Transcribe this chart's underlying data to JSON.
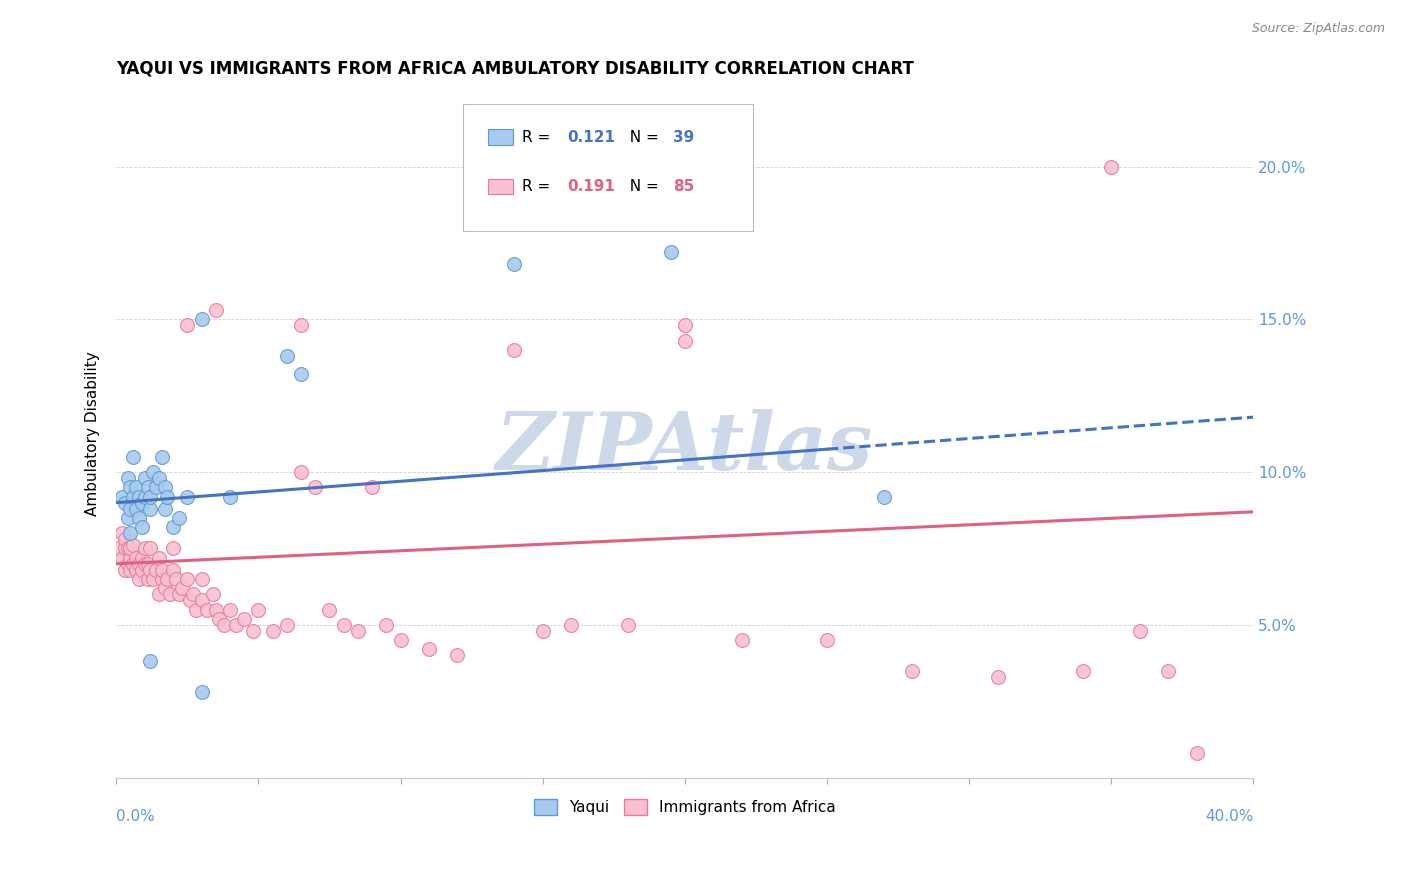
{
  "title": "YAQUI VS IMMIGRANTS FROM AFRICA AMBULATORY DISABILITY CORRELATION CHART",
  "source": "Source: ZipAtlas.com",
  "ylabel": "Ambulatory Disability",
  "ytick_vals": [
    0.05,
    0.1,
    0.15,
    0.2
  ],
  "ytick_labels": [
    "5.0%",
    "10.0%",
    "15.0%",
    "20.0%"
  ],
  "xmin": 0.0,
  "xmax": 0.4,
  "ymin": 0.0,
  "ymax": 0.225,
  "color_yaqui_fill": "#a8caee",
  "color_yaqui_edge": "#5b9bd5",
  "color_africa_fill": "#f8c0d0",
  "color_africa_edge": "#e87a9a",
  "color_line_yaqui": "#4472c4",
  "color_line_africa": "#e06080",
  "background_color": "#ffffff",
  "watermark_color": "#cdd8e8",
  "trend_dashed_start_yaqui": 0.25,
  "yaqui_x": [
    0.002,
    0.003,
    0.004,
    0.004,
    0.005,
    0.005,
    0.005,
    0.006,
    0.006,
    0.007,
    0.007,
    0.008,
    0.008,
    0.009,
    0.009,
    0.01,
    0.01,
    0.011,
    0.012,
    0.012,
    0.013,
    0.014,
    0.015,
    0.016,
    0.017,
    0.017,
    0.018,
    0.02,
    0.022,
    0.025,
    0.03,
    0.04,
    0.06,
    0.065,
    0.14,
    0.195,
    0.27,
    0.03,
    0.012
  ],
  "yaqui_y": [
    0.092,
    0.09,
    0.085,
    0.098,
    0.088,
    0.095,
    0.08,
    0.092,
    0.105,
    0.095,
    0.088,
    0.092,
    0.085,
    0.09,
    0.082,
    0.092,
    0.098,
    0.095,
    0.088,
    0.092,
    0.1,
    0.095,
    0.098,
    0.105,
    0.095,
    0.088,
    0.092,
    0.082,
    0.085,
    0.092,
    0.028,
    0.092,
    0.138,
    0.132,
    0.168,
    0.172,
    0.092,
    0.15,
    0.038
  ],
  "africa_x": [
    0.001,
    0.002,
    0.002,
    0.003,
    0.003,
    0.003,
    0.004,
    0.004,
    0.005,
    0.005,
    0.005,
    0.006,
    0.006,
    0.007,
    0.007,
    0.008,
    0.008,
    0.009,
    0.009,
    0.01,
    0.01,
    0.011,
    0.011,
    0.012,
    0.012,
    0.013,
    0.014,
    0.015,
    0.015,
    0.016,
    0.016,
    0.017,
    0.018,
    0.019,
    0.02,
    0.02,
    0.021,
    0.022,
    0.023,
    0.025,
    0.026,
    0.027,
    0.028,
    0.03,
    0.03,
    0.032,
    0.034,
    0.035,
    0.036,
    0.038,
    0.04,
    0.042,
    0.045,
    0.048,
    0.05,
    0.055,
    0.06,
    0.065,
    0.07,
    0.075,
    0.08,
    0.085,
    0.09,
    0.095,
    0.1,
    0.11,
    0.12,
    0.14,
    0.16,
    0.18,
    0.2,
    0.22,
    0.25,
    0.28,
    0.31,
    0.34,
    0.36,
    0.38,
    0.2,
    0.15,
    0.37,
    0.025,
    0.035,
    0.065,
    0.35
  ],
  "africa_y": [
    0.075,
    0.072,
    0.08,
    0.068,
    0.075,
    0.078,
    0.07,
    0.075,
    0.072,
    0.068,
    0.075,
    0.07,
    0.076,
    0.068,
    0.072,
    0.065,
    0.07,
    0.068,
    0.072,
    0.07,
    0.075,
    0.065,
    0.07,
    0.068,
    0.075,
    0.065,
    0.068,
    0.072,
    0.06,
    0.065,
    0.068,
    0.062,
    0.065,
    0.06,
    0.068,
    0.075,
    0.065,
    0.06,
    0.062,
    0.065,
    0.058,
    0.06,
    0.055,
    0.058,
    0.065,
    0.055,
    0.06,
    0.055,
    0.052,
    0.05,
    0.055,
    0.05,
    0.052,
    0.048,
    0.055,
    0.048,
    0.05,
    0.1,
    0.095,
    0.055,
    0.05,
    0.048,
    0.095,
    0.05,
    0.045,
    0.042,
    0.04,
    0.14,
    0.05,
    0.05,
    0.143,
    0.045,
    0.045,
    0.035,
    0.033,
    0.035,
    0.048,
    0.008,
    0.148,
    0.048,
    0.035,
    0.148,
    0.153,
    0.148,
    0.2
  ],
  "trend_yaqui_x0": 0.0,
  "trend_yaqui_y0": 0.09,
  "trend_yaqui_x1": 0.4,
  "trend_yaqui_y1": 0.118,
  "trend_africa_x0": 0.0,
  "trend_africa_y0": 0.07,
  "trend_africa_x1": 0.4,
  "trend_africa_y1": 0.087
}
